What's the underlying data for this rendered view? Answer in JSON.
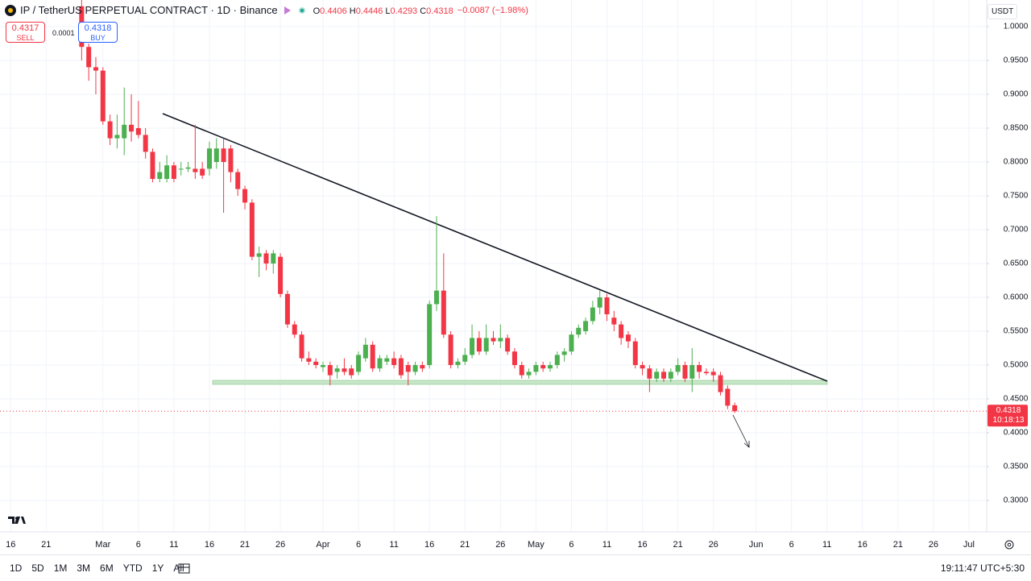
{
  "chart_data": {
    "type": "candlestick",
    "title": "IP / TetherUS PERPETUAL CONTRACT · 1D · Binance",
    "ohlc_labels": [
      "O",
      "H",
      "L",
      "C"
    ],
    "change_label": "−0.0087 (−1.98%)",
    "currency": "USDT",
    "sell": {
      "price": "0.4317",
      "label": "SELL"
    },
    "spread": "0.0001",
    "buy": {
      "price": "0.4318",
      "label": "BUY"
    },
    "price_tag": {
      "price": "0.4318",
      "countdown": "10:18:13"
    },
    "up_color": "#4caf50",
    "down_color": "#f23645",
    "grid": true,
    "categories": [
      null,
      "16",
      null,
      null,
      null,
      null,
      "21",
      null,
      null,
      null,
      null,
      null,
      null,
      null,
      "Mar",
      null,
      null,
      null,
      null,
      "6",
      null,
      null,
      null,
      null,
      "11",
      null,
      null,
      null,
      null,
      "16",
      null,
      null,
      null,
      null,
      "21",
      null,
      null,
      null,
      null,
      "26",
      null,
      null,
      null,
      null,
      null,
      "Apr",
      null,
      null,
      null,
      null,
      "6",
      null,
      null,
      null,
      null,
      "11",
      null,
      null,
      null,
      null,
      "16",
      null,
      null,
      null,
      null,
      "21",
      null,
      null,
      null,
      null,
      "26",
      null,
      null,
      null,
      null,
      "May",
      null,
      null,
      null,
      null,
      "6",
      null,
      null,
      null,
      null,
      "11",
      null,
      null,
      null,
      null,
      "16",
      null,
      null,
      null,
      null,
      "21",
      null,
      null,
      null,
      null,
      "26",
      null,
      null,
      null,
      null,
      null,
      "Jun",
      null,
      null,
      null,
      null,
      "6",
      null,
      null,
      null,
      null,
      "11",
      null,
      null,
      null,
      null,
      "16",
      null,
      null,
      null,
      null,
      "21",
      null,
      null,
      null,
      null,
      "26",
      null,
      null,
      null,
      null,
      "Jul",
      null,
      null
    ],
    "series": {
      "open": [
        null,
        null,
        null,
        null,
        null,
        null,
        null,
        null,
        null,
        null,
        null,
        1.03,
        0.97,
        0.94,
        0.935,
        0.86,
        0.835,
        0.835,
        0.855,
        0.85,
        0.84,
        0.815,
        0.775,
        0.775,
        0.795,
        0.79,
        0.79,
        0.79,
        0.79,
        0.79,
        0.8,
        0.82,
        0.82,
        0.785,
        0.76,
        0.74,
        0.66,
        0.665,
        0.65,
        0.66,
        0.605,
        0.56,
        0.545,
        0.51,
        0.505,
        0.497,
        0.5,
        0.49,
        0.495,
        0.495,
        0.49,
        0.51,
        0.53,
        0.495,
        0.505,
        0.51,
        0.51,
        0.5,
        0.49,
        0.5,
        0.5,
        0.59,
        0.61,
        0.545,
        0.5,
        0.505,
        0.515,
        0.54,
        0.52,
        0.54,
        0.535,
        0.54,
        0.52,
        0.5,
        0.485,
        0.49,
        0.5,
        0.495,
        0.5,
        0.515,
        0.52,
        0.545,
        0.55,
        0.565,
        0.585,
        0.6,
        0.57,
        0.56,
        0.545,
        0.535,
        0.5,
        0.495,
        0.48,
        0.49,
        0.48,
        0.49,
        0.5,
        0.48,
        0.5,
        0.49,
        0.49,
        0.485,
        0.465,
        0.4406,
        null,
        null,
        null,
        null,
        null,
        null,
        null,
        null,
        null,
        null,
        null,
        null,
        null,
        null,
        null,
        null,
        null,
        null,
        null,
        null,
        null,
        null,
        null,
        null,
        null,
        null,
        null,
        null,
        null,
        null,
        null,
        null,
        null,
        null,
        null
      ],
      "high": [
        null,
        null,
        null,
        null,
        null,
        null,
        null,
        null,
        null,
        null,
        null,
        1.05,
        0.975,
        0.955,
        0.94,
        0.87,
        0.87,
        0.91,
        0.9,
        0.89,
        0.85,
        0.82,
        0.8,
        0.81,
        0.8,
        0.8,
        0.8,
        0.855,
        0.8,
        0.83,
        0.835,
        0.835,
        0.825,
        0.79,
        0.765,
        0.745,
        0.675,
        0.67,
        0.67,
        0.665,
        0.61,
        0.565,
        0.55,
        0.52,
        0.51,
        0.505,
        0.505,
        0.5,
        0.51,
        0.5,
        0.52,
        0.54,
        0.535,
        0.515,
        0.515,
        0.52,
        0.515,
        0.505,
        0.505,
        0.505,
        0.595,
        0.72,
        0.665,
        0.55,
        0.51,
        0.525,
        0.56,
        0.55,
        0.56,
        0.55,
        0.56,
        0.545,
        0.525,
        0.505,
        0.495,
        0.505,
        0.505,
        0.505,
        0.52,
        0.525,
        0.55,
        0.56,
        0.57,
        0.595,
        0.61,
        0.605,
        0.58,
        0.565,
        0.55,
        0.54,
        0.505,
        0.5,
        0.495,
        0.495,
        0.495,
        0.51,
        0.505,
        0.525,
        0.505,
        0.495,
        0.495,
        0.49,
        0.47,
        0.4446,
        null,
        null,
        null,
        null,
        null,
        null,
        null,
        null,
        null,
        null,
        null,
        null,
        null,
        null,
        null,
        null,
        null,
        null,
        null,
        null,
        null,
        null,
        null,
        null,
        null,
        null,
        null,
        null,
        null,
        null,
        null,
        null,
        null,
        null,
        null
      ],
      "low": [
        null,
        null,
        null,
        null,
        null,
        null,
        null,
        null,
        null,
        null,
        null,
        0.95,
        0.92,
        0.9,
        0.855,
        0.825,
        0.82,
        0.81,
        0.83,
        0.835,
        0.805,
        0.77,
        0.77,
        0.77,
        0.77,
        0.78,
        0.785,
        0.775,
        0.775,
        0.78,
        0.79,
        0.725,
        0.77,
        0.75,
        0.73,
        0.655,
        0.63,
        0.64,
        0.635,
        0.6,
        0.555,
        0.54,
        0.505,
        0.5,
        0.495,
        0.49,
        0.47,
        0.48,
        0.485,
        0.48,
        0.485,
        0.505,
        0.49,
        0.49,
        0.5,
        0.495,
        0.48,
        0.47,
        0.485,
        0.49,
        0.495,
        0.58,
        0.54,
        0.495,
        0.495,
        0.5,
        0.51,
        0.515,
        0.515,
        0.53,
        0.525,
        0.515,
        0.495,
        0.48,
        0.48,
        0.485,
        0.49,
        0.49,
        0.495,
        0.505,
        0.515,
        0.54,
        0.545,
        0.56,
        0.575,
        0.565,
        0.55,
        0.53,
        0.525,
        0.495,
        0.485,
        0.46,
        0.475,
        0.475,
        0.475,
        0.485,
        0.475,
        0.46,
        0.48,
        0.485,
        0.475,
        0.455,
        0.435,
        0.4293,
        null,
        null,
        null,
        null,
        null,
        null,
        null,
        null,
        null,
        null,
        null,
        null,
        null,
        null,
        null,
        null,
        null,
        null,
        null,
        null,
        null,
        null,
        null,
        null,
        null,
        null,
        null,
        null,
        null,
        null,
        null,
        null,
        null,
        null,
        null
      ],
      "close": [
        null,
        null,
        null,
        null,
        null,
        null,
        null,
        null,
        null,
        null,
        null,
        0.97,
        0.94,
        0.935,
        0.86,
        0.835,
        0.84,
        0.855,
        0.845,
        0.84,
        0.815,
        0.775,
        0.785,
        0.795,
        0.775,
        0.79,
        0.792,
        0.785,
        0.78,
        0.82,
        0.82,
        0.8,
        0.785,
        0.76,
        0.74,
        0.66,
        0.665,
        0.65,
        0.665,
        0.605,
        0.56,
        0.545,
        0.51,
        0.505,
        0.5,
        0.5,
        0.485,
        0.495,
        0.49,
        0.485,
        0.515,
        0.53,
        0.495,
        0.51,
        0.51,
        0.5,
        0.485,
        0.49,
        0.5,
        0.495,
        0.59,
        0.61,
        0.545,
        0.5,
        0.505,
        0.515,
        0.54,
        0.52,
        0.54,
        0.535,
        0.54,
        0.52,
        0.5,
        0.485,
        0.49,
        0.5,
        0.495,
        0.5,
        0.515,
        0.52,
        0.545,
        0.555,
        0.565,
        0.585,
        0.6,
        0.575,
        0.56,
        0.54,
        0.535,
        0.5,
        0.495,
        0.48,
        0.49,
        0.48,
        0.49,
        0.5,
        0.48,
        0.5,
        0.49,
        0.488,
        0.485,
        0.46,
        0.44,
        0.4318,
        null,
        null,
        null,
        null,
        null,
        null,
        null,
        null,
        null,
        null,
        null,
        null,
        null,
        null,
        null,
        null,
        null,
        null,
        null,
        null,
        null,
        null,
        null,
        null,
        null,
        null,
        null,
        null,
        null,
        null,
        null,
        null,
        null,
        null,
        null
      ]
    },
    "ylim": [
      0.2536,
      1.0393
    ],
    "yticks": [
      {
        "value": 0.3,
        "label": "0.3000"
      },
      {
        "value": 0.35,
        "label": "0.3500"
      },
      {
        "value": 0.4,
        "label": "0.4000"
      },
      {
        "value": 0.45,
        "label": "0.4500"
      },
      {
        "value": 0.5,
        "label": "0.5000"
      },
      {
        "value": 0.55,
        "label": "0.5500"
      },
      {
        "value": 0.6,
        "label": "0.6000"
      },
      {
        "value": 0.65,
        "label": "0.6500"
      },
      {
        "value": 0.7,
        "label": "0.7000"
      },
      {
        "value": 0.75,
        "label": "0.7500"
      },
      {
        "value": 0.8,
        "label": "0.8000"
      },
      {
        "value": 0.85,
        "label": "0.8500"
      },
      {
        "value": 0.9,
        "label": "0.9000"
      },
      {
        "value": 0.95,
        "label": "0.9500"
      },
      {
        "value": 1,
        "label": "1.0000"
      }
    ],
    "ranges": [
      "1D",
      "5D",
      "1M",
      "3M",
      "6M",
      "YTD",
      "1Y",
      "All"
    ],
    "clock": "19:11:47 UTC+5:30"
  }
}
